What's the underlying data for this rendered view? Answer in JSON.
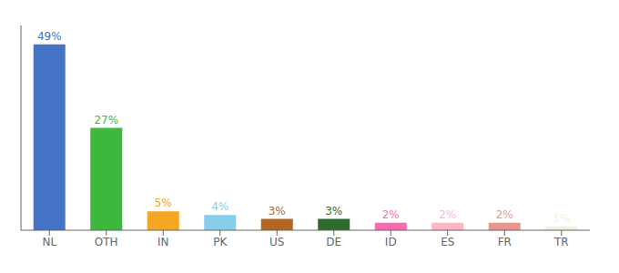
{
  "chart_data": {
    "type": "bar",
    "categories": [
      "NL",
      "OTH",
      "IN",
      "PK",
      "US",
      "DE",
      "ID",
      "ES",
      "FR",
      "TR"
    ],
    "values": [
      49,
      27,
      5,
      4,
      3,
      3,
      2,
      2,
      2,
      1
    ],
    "value_labels": [
      "49%",
      "27%",
      "5%",
      "4%",
      "3%",
      "3%",
      "2%",
      "2%",
      "2%",
      "1%"
    ],
    "colors": [
      "#4472c4",
      "#3cb83c",
      "#f5a623",
      "#87ceeb",
      "#b5651d",
      "#2d6a2d",
      "#ff69b4",
      "#ffb6c1",
      "#e8968c",
      "#f5f0dc"
    ],
    "ylim": [
      0,
      54
    ],
    "data_labels": true,
    "tick_labels": "x",
    "grid": false
  }
}
